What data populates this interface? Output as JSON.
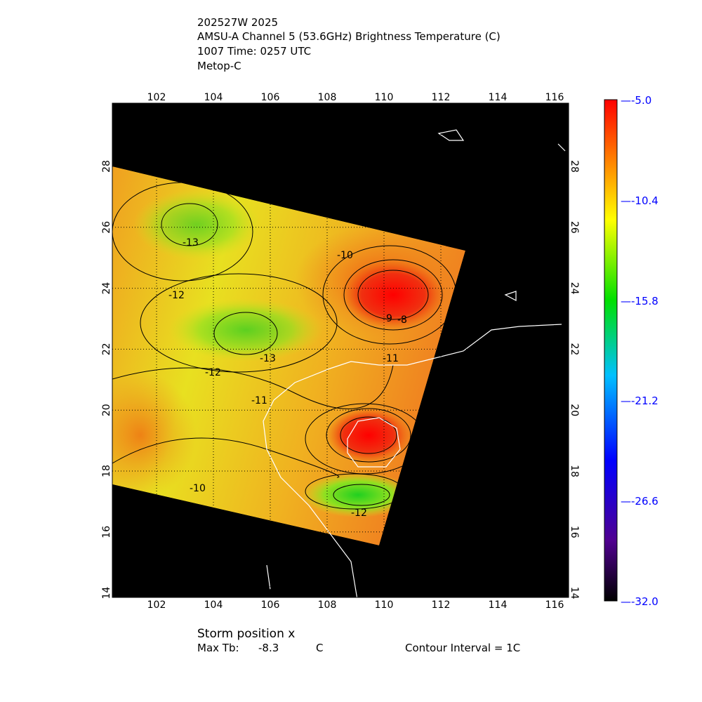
{
  "header": {
    "storm_id": "202527W 2025",
    "product": "AMSU-A Channel 5 (53.6GHz) Brightness Temperature (C)",
    "time": "1007 Time: 0257 UTC",
    "satellite": "Metop-C"
  },
  "chart_data": {
    "type": "heatmap",
    "lon_range": [
      100.45,
      116.5
    ],
    "lat_range": [
      13.85,
      30.05
    ],
    "lon_ticks": [
      "102",
      "104",
      "106",
      "108",
      "110",
      "112",
      "114",
      "116"
    ],
    "lat_ticks": [
      "14",
      "16",
      "18",
      "20",
      "22",
      "24",
      "26",
      "28"
    ],
    "grid": true,
    "contour_labels": [
      "-13",
      "-12",
      "-10",
      "-9",
      "-8",
      "-13",
      "-12",
      "-11",
      "-11",
      "-10",
      "-12"
    ],
    "colorbar": {
      "labels": [
        "-5.0",
        "-10.4",
        "-15.8",
        "-21.2",
        "-26.6",
        "-32.0"
      ],
      "range": [
        -32.0,
        -5.0
      ],
      "colors": [
        "#000000",
        "#4000a0",
        "#0000ff",
        "#00c0ff",
        "#00e000",
        "#ffff00",
        "#ff8000",
        "#ff0000"
      ]
    },
    "background_color": "#000000",
    "coastline_color": "#ffffff"
  },
  "footer": {
    "storm_position": "Storm position x",
    "max_tb_label": "Max Tb:",
    "max_tb_value": "-8.3",
    "max_tb_unit": "C",
    "contour_interval": "Contour Interval = 1C"
  }
}
